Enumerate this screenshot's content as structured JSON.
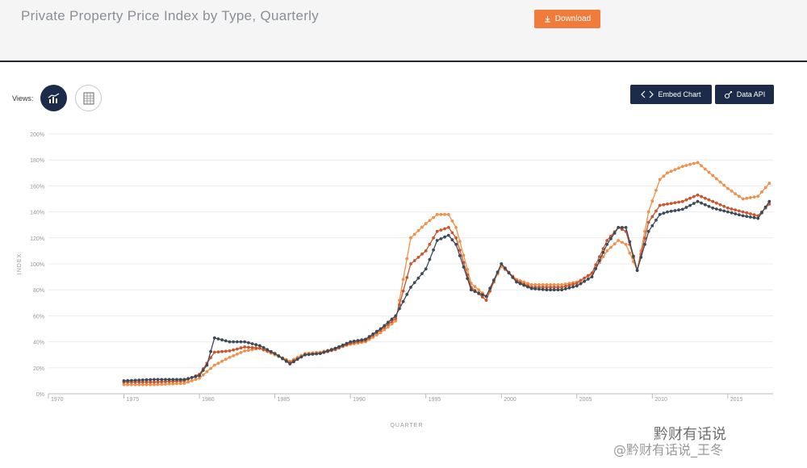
{
  "header": {
    "title": "Private Property Price Index by Type, Quarterly",
    "download_label": "Download"
  },
  "toolbar": {
    "views_label": "Views:",
    "embed_label": "Embed Chart",
    "api_label": "Data API"
  },
  "watermark": {
    "line1": "黔财有话说",
    "line2": "@黔财有话说_王冬"
  },
  "colors": {
    "accent": "#f07c3c",
    "navy": "#1c2b4a",
    "series_dark": "#3c4a5a",
    "series_red": "#c8562e",
    "series_orange": "#f0904a"
  },
  "icons": [
    "download-icon",
    "chart-view-icon",
    "table-view-icon",
    "code-icon",
    "api-icon"
  ],
  "chart_data": {
    "type": "line",
    "title": "Private Property Price Index by Type, Quarterly",
    "xlabel": "QUARTER",
    "ylabel": "INDEX",
    "xlim": [
      1970,
      2018
    ],
    "ylim": [
      0,
      200
    ],
    "x_ticks": [
      1970,
      1975,
      1980,
      1985,
      1990,
      1995,
      2000,
      2005,
      2010,
      2015
    ],
    "y_ticks": [
      "0%",
      "20%",
      "40%",
      "60%",
      "80%",
      "100%",
      "120%",
      "140%",
      "160%",
      "180%",
      "200%"
    ],
    "grid": "horizontal",
    "series": [
      {
        "color": "#3c4a5a",
        "x": [
          1975,
          1977,
          1979,
          1980,
          1980.5,
          1981,
          1982,
          1983,
          1984,
          1985,
          1986,
          1987,
          1988,
          1989,
          1990,
          1991,
          1992,
          1993,
          1994,
          1995,
          1995.75,
          1996.5,
          1997,
          1998,
          1999,
          2000,
          2001,
          2002,
          2003,
          2004,
          2005,
          2006,
          2007,
          2007.75,
          2008.25,
          2009,
          2009.75,
          2010.5,
          2011,
          2012,
          2013,
          2014,
          2015,
          2016,
          2017,
          2017.75
        ],
        "values": [
          10,
          11,
          11,
          14,
          22,
          43,
          40,
          40,
          37,
          31,
          23,
          30,
          31,
          35,
          40,
          42,
          50,
          60,
          82,
          96,
          118,
          122,
          115,
          80,
          75,
          100,
          86,
          81,
          80,
          80,
          83,
          90,
          115,
          128,
          128,
          95,
          125,
          138,
          140,
          142,
          148,
          143,
          140,
          137,
          135,
          148
        ]
      },
      {
        "color": "#c8562e",
        "x": [
          1975,
          1977,
          1979,
          1980,
          1981,
          1982,
          1983,
          1984,
          1985,
          1986,
          1987,
          1988,
          1989,
          1990,
          1991,
          1992,
          1993,
          1994,
          1995,
          1995.75,
          1996.5,
          1997,
          1998,
          1999,
          2000,
          2001,
          2002,
          2003,
          2004,
          2005,
          2006,
          2007,
          2007.75,
          2008.25,
          2009,
          2009.75,
          2010.5,
          2011,
          2012,
          2013,
          2014,
          2015,
          2016,
          2017,
          2017.75
        ],
        "values": [
          9,
          9,
          10,
          15,
          32,
          33,
          36,
          35,
          31,
          24,
          30,
          31,
          34,
          39,
          41,
          49,
          58,
          100,
          110,
          125,
          128,
          120,
          82,
          72,
          100,
          87,
          82,
          82,
          82,
          85,
          93,
          118,
          128,
          125,
          95,
          132,
          145,
          146,
          148,
          153,
          148,
          143,
          140,
          137,
          146
        ]
      },
      {
        "color": "#f0904a",
        "x": [
          1975,
          1977,
          1979,
          1980,
          1981,
          1982,
          1983,
          1984,
          1985,
          1986,
          1987,
          1988,
          1989,
          1990,
          1991,
          1992,
          1993,
          1994,
          1995,
          1995.75,
          1996.5,
          1997,
          1998,
          1999,
          2000,
          2001,
          2002,
          2003,
          2004,
          2005,
          2006,
          2007,
          2007.75,
          2008.25,
          2009,
          2009.75,
          2010.5,
          2011,
          2012,
          2013,
          2014,
          2015,
          2016,
          2017,
          2017.75
        ],
        "values": [
          7,
          7,
          8,
          12,
          22,
          28,
          33,
          35,
          30,
          25,
          31,
          32,
          35,
          38,
          40,
          47,
          56,
          120,
          131,
          138,
          138,
          128,
          85,
          75,
          98,
          88,
          84,
          84,
          84,
          86,
          92,
          110,
          118,
          115,
          95,
          140,
          165,
          170,
          175,
          178,
          168,
          158,
          150,
          152,
          162
        ]
      }
    ]
  }
}
